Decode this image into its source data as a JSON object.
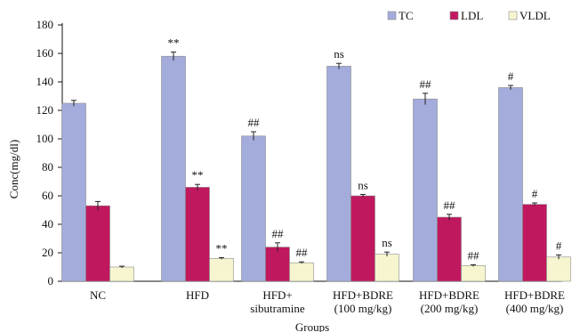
{
  "chart_data": {
    "type": "bar",
    "title": "",
    "xlabel": "Groups",
    "ylabel": "Conc(mg/dl)",
    "ylim": [
      0,
      180
    ],
    "yticks": [
      0,
      20,
      40,
      60,
      80,
      100,
      120,
      140,
      160,
      180
    ],
    "grid": false,
    "legend_position": "top-right",
    "categories": [
      [
        "NC"
      ],
      [
        "HFD"
      ],
      [
        "HFD+",
        "sibutramine"
      ],
      [
        "HFD+BDRE",
        "(100 mg/kg)"
      ],
      [
        "HFD+BDRE",
        "(200 mg/kg)"
      ],
      [
        "HFD+BDRE",
        "(400 mg/kg)"
      ]
    ],
    "series": [
      {
        "name": "TC",
        "color": "#a4acdc",
        "values": [
          125,
          158,
          102,
          151,
          128,
          136
        ],
        "errors": [
          2,
          3,
          3,
          2,
          4,
          1.5
        ],
        "annotations": [
          "",
          "**",
          "##",
          "ns",
          "##",
          "#"
        ]
      },
      {
        "name": "LDL",
        "color": "#c0185e",
        "values": [
          53,
          66,
          24,
          60,
          45,
          54
        ],
        "errors": [
          3,
          2,
          3,
          1,
          2,
          1
        ],
        "annotations": [
          "",
          "**",
          "##",
          "ns",
          "##",
          "#"
        ]
      },
      {
        "name": "VLDL",
        "color": "#f7f5cf",
        "values": [
          10,
          16,
          13,
          19,
          11,
          17
        ],
        "errors": [
          0.6,
          0.6,
          0.6,
          1.5,
          0.6,
          1.5
        ],
        "annotations": [
          "",
          "**",
          "##",
          "ns",
          "##",
          "#"
        ]
      }
    ]
  }
}
